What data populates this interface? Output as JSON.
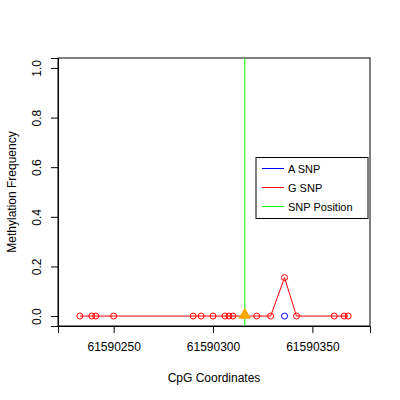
{
  "chart_data": {
    "type": "line",
    "x_label": "CpG Coordinates",
    "y_label": "Methylation Frequency",
    "x": [
      61590233,
      61590239,
      61590241,
      61590250,
      61590290,
      61590294,
      61590300,
      61590306,
      61590308,
      61590310,
      61590322,
      61590329,
      61590336,
      61590342,
      61590361,
      61590366,
      61590368
    ],
    "series": [
      {
        "name": "A SNP",
        "color": "#0000ff",
        "marker": "circle",
        "values": [
          null,
          null,
          null,
          null,
          null,
          null,
          null,
          null,
          null,
          null,
          null,
          null,
          0,
          null,
          null,
          null,
          null
        ]
      },
      {
        "name": "G SNP",
        "color": "#ff0000",
        "marker": "circle",
        "values": [
          0,
          0,
          0,
          0,
          0,
          0,
          0,
          0,
          0,
          0,
          0,
          0,
          0.155,
          0,
          0,
          0,
          0
        ]
      }
    ],
    "vline": {
      "name": "SNP Position",
      "x": 61590316,
      "color": "#00ff00"
    },
    "snp_marker": {
      "x": 61590316,
      "y": 0,
      "color": "#ffa500",
      "marker": "triangle"
    },
    "xlim": [
      61590222,
      61590379
    ],
    "ylim": [
      -0.04,
      1.04
    ],
    "xticks": [
      61590250,
      61590300,
      61590350
    ],
    "yticks": [
      {
        "value": 0,
        "label": "0.0"
      },
      {
        "value": 0.2,
        "label": "0.2"
      },
      {
        "value": 0.4,
        "label": "0.4"
      },
      {
        "value": 0.6,
        "label": "0.6"
      },
      {
        "value": 0.8,
        "label": "0.8"
      },
      {
        "value": 1,
        "label": "1.0"
      }
    ],
    "legend": "right",
    "grid": false
  }
}
